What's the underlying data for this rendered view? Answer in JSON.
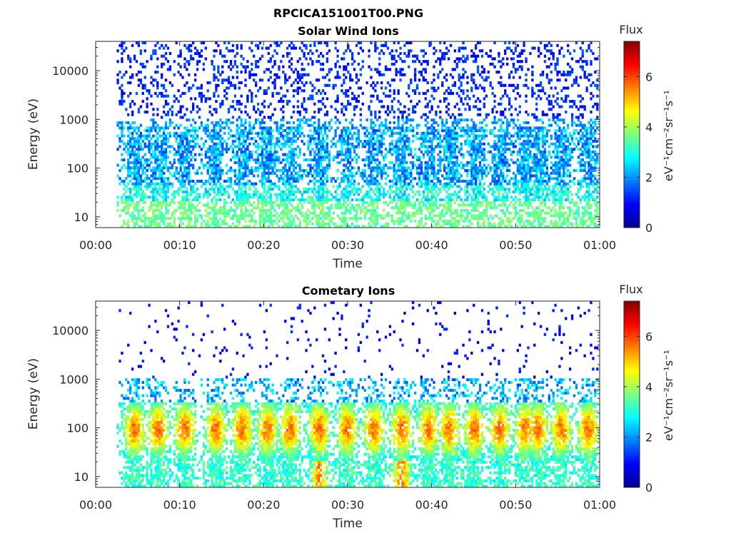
{
  "figure": {
    "title": "RPCICA151001T00.PNG"
  },
  "colors": {
    "axis": "#262626",
    "background": "#ffffff",
    "colormap": "jet"
  },
  "chart_data": [
    {
      "type": "heatmap",
      "title": "Solar Wind Ions",
      "xlabel": "Time",
      "ylabel": "Energy (eV)",
      "xlim": [
        "00:00",
        "01:00"
      ],
      "xticks": [
        "00:00",
        "00:10",
        "00:20",
        "00:30",
        "00:40",
        "00:50",
        "01:00"
      ],
      "yscale": "log",
      "ylim": [
        6,
        40000
      ],
      "yticks": [
        10,
        100,
        1000,
        10000
      ],
      "ytick_labels": [
        "10",
        "100",
        "1000",
        "10000"
      ],
      "data_start": "00:02:30",
      "data_end": "00:59:50",
      "colorbar": {
        "label": "Flux",
        "units": "eV⁻¹cm⁻²sr⁻¹s⁻¹",
        "range": [
          0,
          7.4
        ],
        "ticks": [
          0,
          2,
          4,
          6
        ],
        "tick_labels": [
          "0",
          "2",
          "4",
          "6"
        ]
      },
      "description_bands": "Sparse blue counts 1000–30000 eV; patchy cyan/blue bursts 40–800 eV; green low-energy band below 20 eV"
    },
    {
      "type": "heatmap",
      "title": "Cometary Ions",
      "xlabel": "Time",
      "ylabel": "Energy (eV)",
      "xlim": [
        "00:00",
        "01:00"
      ],
      "xticks": [
        "00:00",
        "00:10",
        "00:20",
        "00:30",
        "00:40",
        "00:50",
        "01:00"
      ],
      "yscale": "log",
      "ylim": [
        6,
        40000
      ],
      "yticks": [
        10,
        100,
        1000,
        10000
      ],
      "ytick_labels": [
        "10",
        "100",
        "1000",
        "10000"
      ],
      "data_start": "00:02:30",
      "data_end": "00:59:50",
      "colorbar": {
        "label": "Flux",
        "units": "eV⁻¹cm⁻²sr⁻¹s⁻¹",
        "range": [
          0,
          7.4
        ],
        "ticks": [
          0,
          2,
          4,
          6
        ],
        "tick_labels": [
          "0",
          "2",
          "4",
          "6"
        ]
      },
      "bursts_minutes": [
        4.5,
        7.3,
        10.5,
        14.2,
        17.3,
        20.3,
        23.0,
        26.5,
        29.8,
        33.0,
        36.3,
        39.5,
        42.0,
        45.0,
        48.0,
        51.0,
        52.5,
        55.3,
        58.5
      ]
    }
  ]
}
